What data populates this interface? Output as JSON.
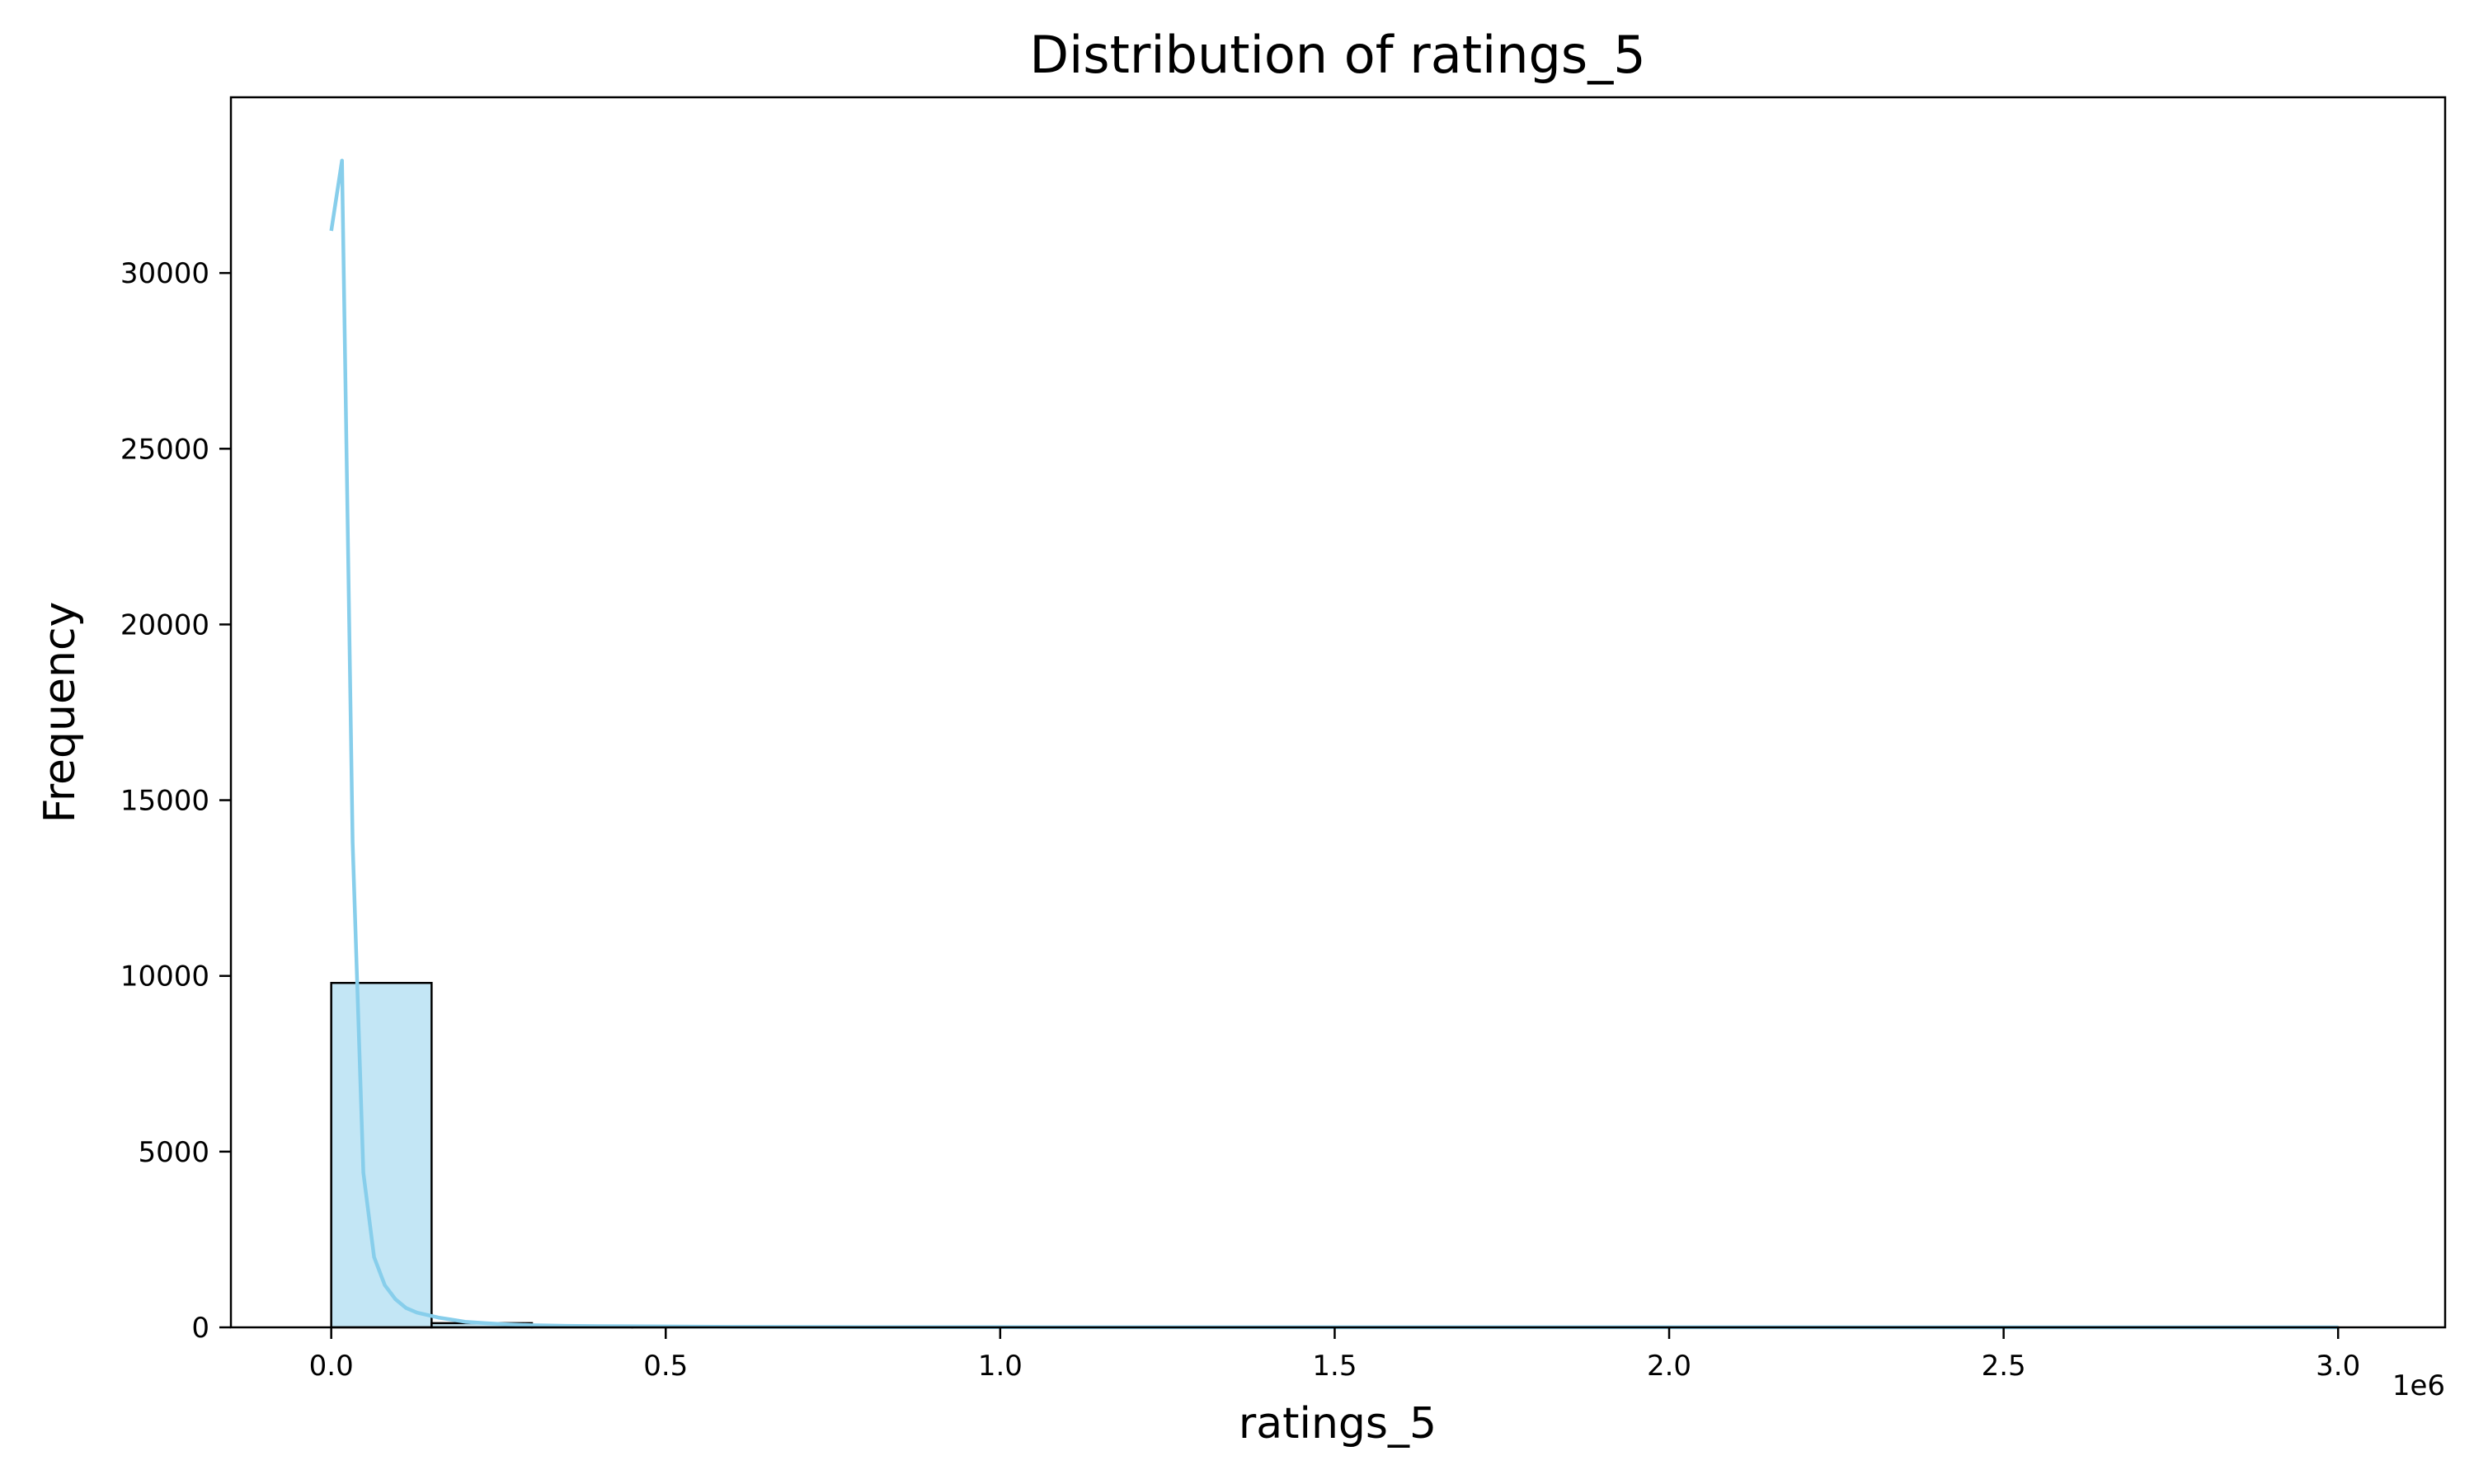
{
  "chart_data": {
    "type": "bar",
    "title": "Distribution of ratings_5",
    "xlabel": "ratings_5",
    "ylabel": "Frequency",
    "x_offset_label": "1e6",
    "xlim": [
      -0.15,
      3.16
    ],
    "ylim": [
      0,
      35000
    ],
    "x_ticks": [
      0.0,
      0.5,
      1.0,
      1.5,
      2.0,
      2.5,
      3.0
    ],
    "x_tick_labels": [
      "0.0",
      "0.5",
      "1.0",
      "1.5",
      "2.0",
      "2.5",
      "3.0"
    ],
    "y_ticks": [
      0,
      5000,
      10000,
      15000,
      20000,
      25000,
      30000
    ],
    "y_tick_labels": [
      "0",
      "5000",
      "10000",
      "15000",
      "20000",
      "25000",
      "30000"
    ],
    "bar_color": "#87ceeb",
    "bar_edge_color": "#000000",
    "kde_color": "#87ceeb",
    "grid": false,
    "bins": [
      {
        "x0": 0.0,
        "x1": 0.15,
        "count": 9800
      },
      {
        "x0": 0.15,
        "x1": 0.3,
        "count": 120
      },
      {
        "x0": 0.3,
        "x1": 0.45,
        "count": 30
      },
      {
        "x0": 0.45,
        "x1": 0.6,
        "count": 12
      },
      {
        "x0": 0.6,
        "x1": 0.75,
        "count": 6
      },
      {
        "x0": 0.75,
        "x1": 0.9,
        "count": 4
      },
      {
        "x0": 0.9,
        "x1": 1.05,
        "count": 3
      },
      {
        "x0": 1.05,
        "x1": 1.2,
        "count": 2
      },
      {
        "x0": 1.2,
        "x1": 1.35,
        "count": 1
      },
      {
        "x0": 1.35,
        "x1": 1.5,
        "count": 1
      },
      {
        "x0": 1.5,
        "x1": 1.65,
        "count": 1
      },
      {
        "x0": 1.65,
        "x1": 1.8,
        "count": 1
      },
      {
        "x0": 1.8,
        "x1": 1.95,
        "count": 0
      },
      {
        "x0": 1.95,
        "x1": 2.1,
        "count": 1
      },
      {
        "x0": 2.1,
        "x1": 2.25,
        "count": 0
      },
      {
        "x0": 2.25,
        "x1": 2.4,
        "count": 0
      },
      {
        "x0": 2.4,
        "x1": 2.55,
        "count": 0
      },
      {
        "x0": 2.55,
        "x1": 2.7,
        "count": 0
      },
      {
        "x0": 2.7,
        "x1": 2.85,
        "count": 0
      },
      {
        "x0": 2.85,
        "x1": 3.0,
        "count": 1
      }
    ],
    "kde": {
      "x": [
        0.0,
        0.016,
        0.032,
        0.048,
        0.064,
        0.08,
        0.096,
        0.112,
        0.128,
        0.144,
        0.16,
        0.18,
        0.2,
        0.23,
        0.26,
        0.3,
        0.35,
        0.4,
        0.5,
        0.6,
        0.8,
        1.0,
        1.5,
        2.0,
        2.5,
        3.0
      ],
      "y": [
        31200,
        33200,
        13800,
        4400,
        2000,
        1200,
        800,
        550,
        420,
        350,
        280,
        220,
        160,
        120,
        90,
        60,
        45,
        35,
        25,
        15,
        8,
        5,
        3,
        2,
        1,
        1
      ]
    }
  }
}
